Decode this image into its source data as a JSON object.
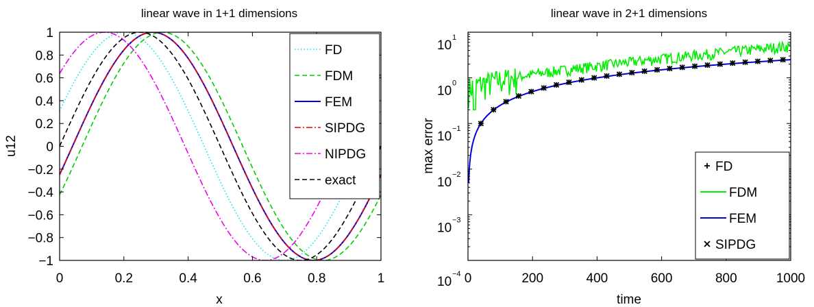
{
  "chart_data": [
    {
      "type": "line",
      "title": "linear wave in 1+1 dimensions",
      "xlabel": "x",
      "ylabel": "u12",
      "xlim": [
        0,
        1
      ],
      "ylim": [
        -1,
        1
      ],
      "xticks": [
        "0",
        "0.2",
        "0.4",
        "0.6",
        "0.8",
        "1"
      ],
      "yticks": [
        "1",
        "0.8",
        "0.6",
        "0.4",
        "0.2",
        "0",
        "−0.2",
        "−0.4",
        "−0.6",
        "−0.8",
        "−1"
      ],
      "legend_position": "top-right",
      "series": [
        {
          "name": "FD",
          "color": "#00e5ee",
          "dash": "dotted",
          "peak_x": 0.2,
          "period": 1.0
        },
        {
          "name": "FDM",
          "color": "#00cc00",
          "dash": "dashed",
          "peak_x": 0.32,
          "period": 1.0
        },
        {
          "name": "FEM",
          "color": "#0000dd",
          "dash": "solid",
          "peak_x": 0.29,
          "period": 1.0
        },
        {
          "name": "SIPDG",
          "color": "#ee0000",
          "dash": "dashdot",
          "peak_x": 0.29,
          "period": 1.0
        },
        {
          "name": "NIPDG",
          "color": "#ee00ee",
          "dash": "dashdot",
          "peak_x": 0.14,
          "period": 1.0
        },
        {
          "name": "exact",
          "color": "#000000",
          "dash": "dashed",
          "peak_x": 0.25,
          "period": 1.0
        }
      ]
    },
    {
      "type": "line",
      "title": "linear wave in 2+1 dimensions",
      "xlabel": "time",
      "ylabel": "max error",
      "xlim": [
        0,
        1000
      ],
      "ylim_log10": [
        -4,
        1
      ],
      "yscale": "log",
      "xticks": [
        "0",
        "200",
        "400",
        "600",
        "800",
        "1000"
      ],
      "yticks": [
        {
          "base": "10",
          "exp": "1"
        },
        {
          "base": "10",
          "exp": "0"
        },
        {
          "base": "10",
          "exp": "−1"
        },
        {
          "base": "10",
          "exp": "−2"
        },
        {
          "base": "10",
          "exp": "−3"
        },
        {
          "base": "10",
          "exp": "−4"
        }
      ],
      "legend_position": "bottom-right",
      "series": [
        {
          "name": "FD",
          "color": "#000000",
          "marker": "plus"
        },
        {
          "name": "FDM",
          "color": "#00ee00",
          "marker": "none"
        },
        {
          "name": "FEM",
          "color": "#0000dd",
          "marker": "none"
        },
        {
          "name": "SIPDG",
          "color": "#000000",
          "marker": "cross"
        }
      ],
      "points_FD_SIPDG": {
        "x": [
          40,
          79,
          118,
          157,
          196,
          235,
          274,
          313,
          352,
          391,
          430,
          469,
          508,
          547,
          586,
          625,
          664,
          703,
          742,
          781,
          820,
          859,
          898,
          937,
          976
        ],
        "y": [
          0.1,
          0.2,
          0.3,
          0.4,
          0.5,
          0.6,
          0.7,
          0.8,
          0.9,
          1.0,
          1.1,
          1.2,
          1.3,
          1.4,
          1.5,
          1.6,
          1.7,
          1.8,
          1.9,
          2.0,
          2.1,
          2.2,
          2.3,
          2.4,
          2.5
        ]
      },
      "fem_curve": {
        "model": "y = 0.0025 * t",
        "t_start": 2
      },
      "fdm_curve": {
        "start_level": 0.6,
        "end_level": 5.0,
        "min_dip": 0.2
      }
    }
  ]
}
